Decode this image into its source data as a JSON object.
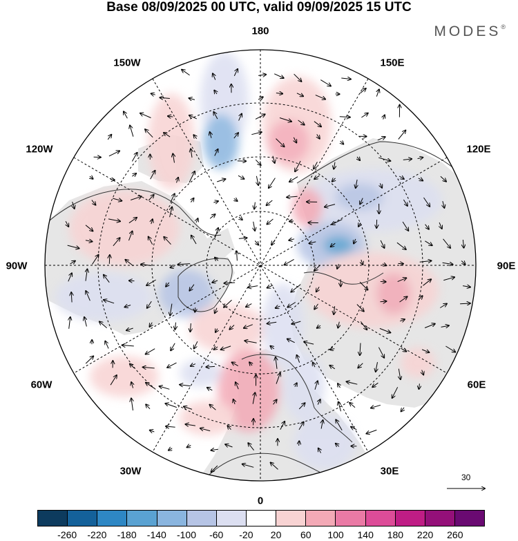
{
  "title": "Base 08/09/2025 00 UTC, valid 09/09/2025 15 UTC",
  "brand": "MODES",
  "brand_mark": "®",
  "map": {
    "projection": "north-polar-stereographic",
    "longitude_labels": {
      "top": "180",
      "upper_left": "150W",
      "upper_right": "150E",
      "left_upper": "120W",
      "right_upper": "120E",
      "left": "90W",
      "right": "90E",
      "left_lower": "60W",
      "right_lower": "60E",
      "lower_left": "30W",
      "lower_right": "30E",
      "bottom": "0"
    },
    "reference_vector_label": "30"
  },
  "colorbar": {
    "colors": [
      "#0d3b5e",
      "#14619a",
      "#2e87c4",
      "#5aa2d2",
      "#8ab5df",
      "#b6c4e5",
      "#dcdff1",
      "#ffffff",
      "#f8d3d3",
      "#f3a9b6",
      "#ea7aa5",
      "#dd4c98",
      "#bf1d85",
      "#941079",
      "#6a0a72"
    ],
    "ticks": [
      "-260",
      "-220",
      "-180",
      "-140",
      "-100",
      "-60",
      "-20",
      "20",
      "60",
      "100",
      "140",
      "180",
      "220",
      "260"
    ]
  }
}
